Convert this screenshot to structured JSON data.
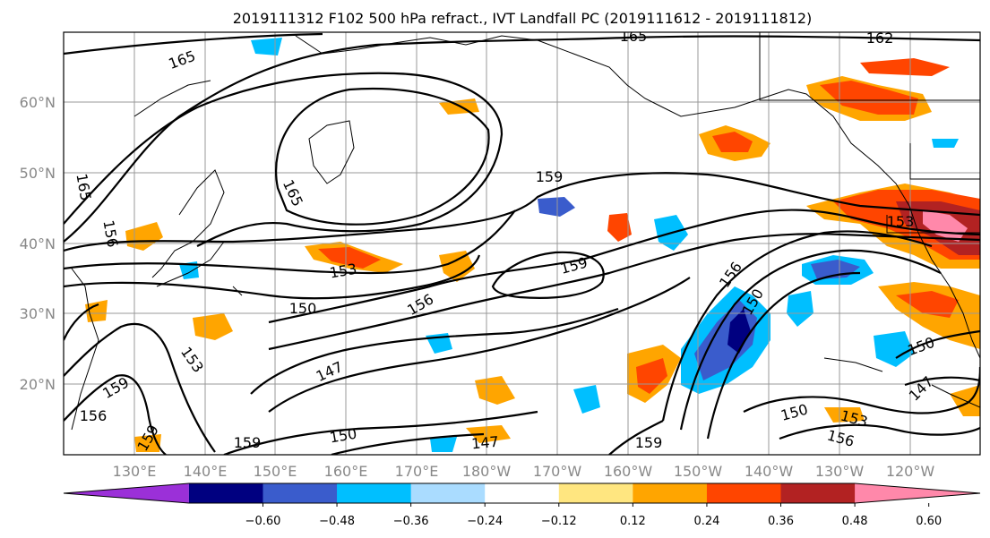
{
  "title": "2019111312 F102 500 hPa refract., IVT Landfall PC (2019111612 - 2019111812)",
  "lat_labels": [
    "60°N",
    "50°N",
    "40°N",
    "30°N",
    "20°N"
  ],
  "lon_labels": [
    "130°E",
    "140°E",
    "150°E",
    "160°E",
    "170°E",
    "180°W",
    "170°W",
    "160°W",
    "150°W",
    "140°W",
    "130°W",
    "120°W"
  ],
  "contour_labels": [
    "165",
    "165",
    "165",
    "165",
    "162",
    "159",
    "159",
    "159",
    "159",
    "159",
    "159",
    "156",
    "156",
    "156",
    "156",
    "156",
    "153",
    "153",
    "153",
    "153",
    "150",
    "150",
    "150",
    "150",
    "150",
    "147",
    "147",
    "147"
  ],
  "colorbar": {
    "ticks": [
      "−0.60",
      "−0.48",
      "−0.36",
      "−0.24",
      "−0.12",
      "0.12",
      "0.24",
      "0.36",
      "0.48",
      "0.60"
    ],
    "colors": [
      "#9b30d8",
      "#000080",
      "#3a5ccc",
      "#00bfff",
      "#aadcff",
      "#ffffff",
      "#ffe680",
      "#ffa500",
      "#ff4500",
      "#b22222",
      "#ff88aa",
      "#ff88aa"
    ]
  }
}
